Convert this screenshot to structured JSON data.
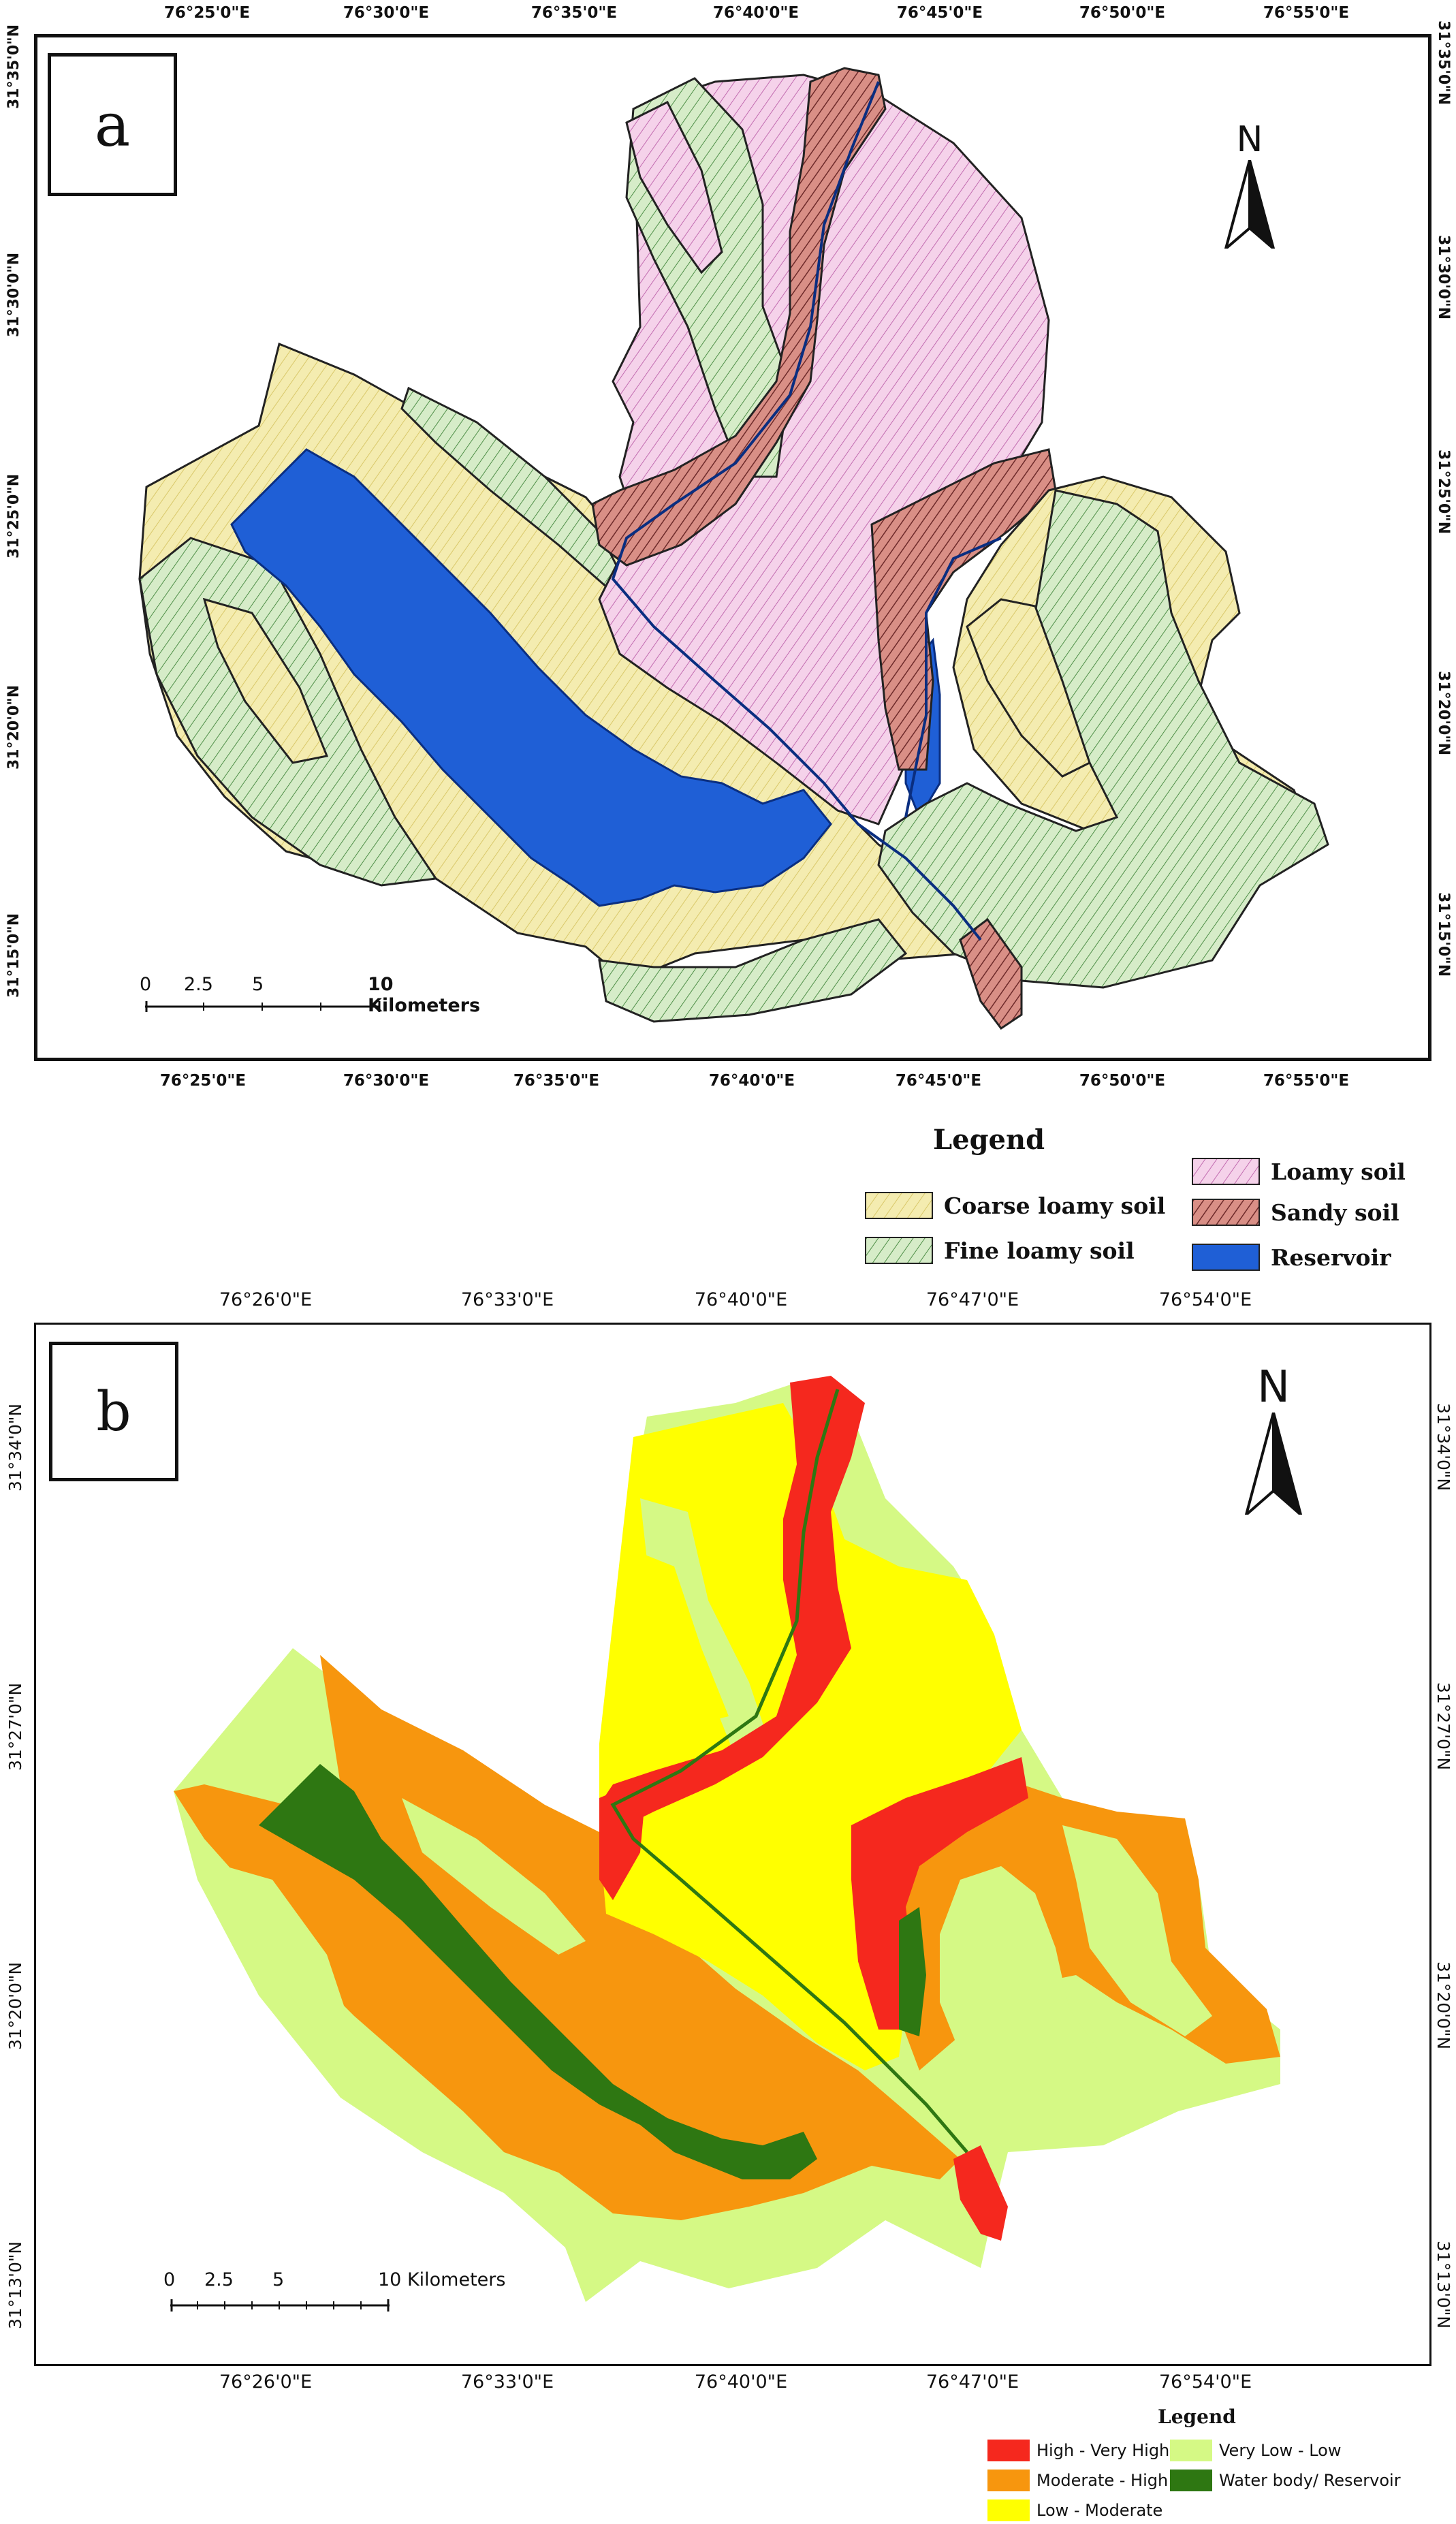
{
  "panel_a": {
    "label": "a",
    "north": "N",
    "top_ticks": [
      "76°25'0\"E",
      "76°30'0\"E",
      "76°35'0\"E",
      "76°40'0\"E",
      "76°45'0\"E",
      "76°50'0\"E",
      "76°55'0\"E"
    ],
    "bottom_ticks": [
      "76°25'0\"E",
      "76°30'0\"E",
      "76°35'0\"E",
      "76°40'0\"E",
      "76°45'0\"E",
      "76°50'0\"E",
      "76°55'0\"E"
    ],
    "left_ticks": [
      "31°35'0\"N",
      "31°30'0\"N",
      "31°25'0\"N",
      "31°20'0\"N",
      "31°15'0\"N"
    ],
    "right_ticks": [
      "31°35'0\"N",
      "31°30'0\"N",
      "31°25'0\"N",
      "31°20'0\"N",
      "31°15'0\"N"
    ],
    "scale": {
      "labels": [
        "0",
        "2.5",
        "5",
        "10 Kilometers"
      ]
    },
    "legend": {
      "title": "Legend",
      "items": [
        {
          "label": "Coarse loamy soil",
          "color": "#f4ecb0",
          "hatch": "#d9c86a"
        },
        {
          "label": "Fine loamy soil",
          "color": "#d6ecc8",
          "hatch": "#4f8f48"
        },
        {
          "label": "Loamy soil",
          "color": "#f5d2ea",
          "hatch": "#c26cb0"
        },
        {
          "label": "Sandy soil",
          "color": "#d98f86",
          "hatch": "#6e2a2a"
        },
        {
          "label": "Reservoir",
          "color": "#1f5fd6",
          "hatch": "#1f5fd6"
        }
      ]
    }
  },
  "panel_b": {
    "label": "b",
    "north": "N",
    "top_ticks": [
      "76°26'0\"E",
      "76°33'0\"E",
      "76°40'0\"E",
      "76°47'0\"E",
      "76°54'0\"E"
    ],
    "bottom_ticks": [
      "76°26'0\"E",
      "76°33'0\"E",
      "76°40'0\"E",
      "76°47'0\"E",
      "76°54'0\"E"
    ],
    "left_ticks": [
      "31°34'0\"N",
      "31°27'0\"N",
      "31°20'0\"N",
      "31°13'0\"N"
    ],
    "right_ticks": [
      "31°34'0\"N",
      "31°27'0\"N",
      "31°20'0\"N",
      "31°13'0\"N"
    ],
    "scale": {
      "labels": [
        "0",
        "2.5",
        "5",
        "10 Kilometers"
      ]
    },
    "legend": {
      "title": "Legend",
      "items": [
        {
          "label": "High - Very High",
          "color": "#f5281e"
        },
        {
          "label": "Very Low - Low",
          "color": "#d5f985"
        },
        {
          "label": "Moderate - High",
          "color": "#f7960e"
        },
        {
          "label": "Water body/ Reservoir",
          "color": "#2e7712"
        },
        {
          "label": "Low - Moderate",
          "color": "#ffff00"
        }
      ]
    }
  }
}
